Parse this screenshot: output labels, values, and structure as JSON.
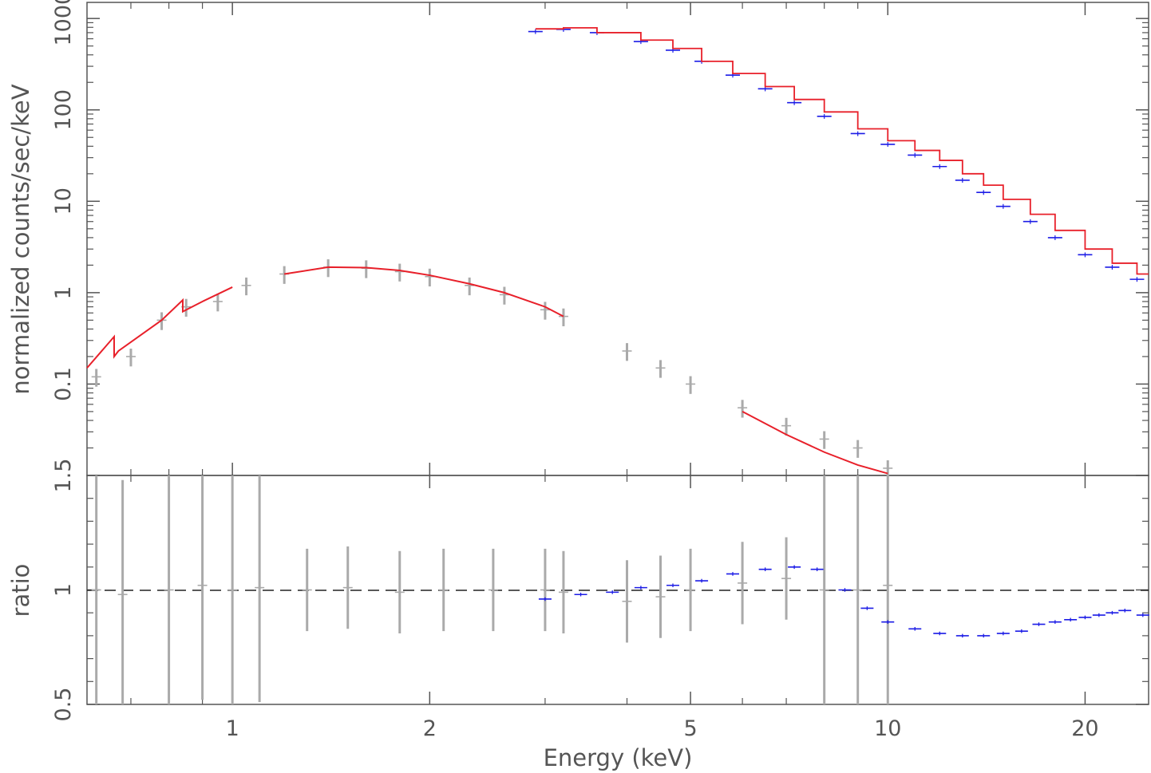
{
  "chart_data": [
    {
      "panel": "spectrum",
      "type": "line",
      "ylabel": "normalized counts/sec/keV",
      "xscale": "log",
      "yscale": "log",
      "xlim": [
        0.6,
        25
      ],
      "ylim": [
        0.01,
        1500
      ],
      "x_ticks": [
        "1",
        "2",
        "5",
        "10",
        "20"
      ],
      "y_ticks": [
        "0.1",
        "1",
        "10",
        "100",
        "1000"
      ],
      "series": [
        {
          "color": "#aaaaaa",
          "style": "data with error bars",
          "x": [
            0.62,
            0.7,
            0.78,
            0.85,
            0.95,
            1.05,
            1.2,
            1.4,
            1.6,
            1.8,
            2.0,
            2.3,
            2.6,
            3.0,
            3.2,
            4.0,
            4.5,
            5.0,
            6.0,
            7.0,
            8.0,
            9.0,
            10.0
          ],
          "y": [
            0.12,
            0.2,
            0.5,
            0.7,
            0.8,
            1.2,
            1.6,
            1.9,
            1.85,
            1.7,
            1.5,
            1.2,
            0.95,
            0.65,
            0.55,
            0.23,
            0.15,
            0.1,
            0.055,
            0.035,
            0.025,
            0.02,
            0.012
          ]
        },
        {
          "color": "#e8202a",
          "style": "model",
          "x": [
            0.6,
            0.66,
            0.66,
            0.67,
            0.78,
            0.84,
            0.84,
            0.9,
            1.0,
            1.2,
            1.4,
            1.6,
            1.8,
            2.0,
            2.3,
            2.6,
            3.0,
            3.2,
            4.0,
            5.0,
            6.0,
            7.0,
            8.0,
            9.0,
            10.0
          ],
          "y": [
            0.15,
            0.33,
            0.2,
            0.23,
            0.5,
            0.83,
            0.62,
            0.8,
            1.15,
            1.6,
            1.9,
            1.88,
            1.75,
            1.55,
            1.25,
            1.0,
            0.7,
            0.55,
            0.25,
            0.11,
            0.05,
            0.028,
            0.018,
            0.013,
            0.0105
          ]
        },
        {
          "color": "#1c1ce6",
          "style": "data with error bars",
          "x": [
            2.9,
            3.2,
            3.6,
            4.2,
            4.7,
            5.2,
            5.8,
            6.5,
            7.2,
            8.0,
            9.0,
            10.0,
            11.0,
            12.0,
            13.0,
            14.0,
            15.0,
            16.5,
            18.0,
            20.0,
            22.0,
            24.0
          ],
          "y": [
            720,
            760,
            700,
            560,
            450,
            340,
            240,
            170,
            120,
            85,
            55,
            42,
            32,
            24,
            17,
            12.5,
            8.8,
            6.0,
            4.0,
            2.6,
            1.9,
            1.4
          ]
        },
        {
          "color": "#e8202a",
          "style": "model step",
          "x": [
            2.9,
            3.2,
            3.6,
            4.2,
            4.7,
            5.2,
            5.8,
            6.5,
            7.2,
            8.0,
            9.0,
            10.0,
            11.0,
            12.0,
            13.0,
            14.0,
            15.0,
            16.5,
            18.0,
            20.0,
            22.0,
            24.0
          ],
          "y": [
            770,
            790,
            700,
            580,
            470,
            340,
            250,
            180,
            130,
            95,
            62,
            46,
            36,
            28,
            20,
            15,
            10.5,
            7.2,
            4.8,
            3.0,
            2.1,
            1.6
          ]
        }
      ]
    },
    {
      "panel": "ratio",
      "type": "scatter",
      "xlabel": "Energy (keV)",
      "ylabel": "ratio",
      "xscale": "log",
      "xlim": [
        0.6,
        25
      ],
      "ylim": [
        0.5,
        1.5
      ],
      "x_ticks": [
        "1",
        "2",
        "5",
        "10",
        "20"
      ],
      "y_ticks": [
        "0.5",
        "1",
        "1.5"
      ],
      "reference_line": 1,
      "series": [
        {
          "color": "#aaaaaa",
          "style": "data with error bars",
          "x": [
            0.62,
            0.68,
            0.8,
            0.9,
            1.0,
            1.1,
            1.3,
            1.5,
            1.8,
            2.1,
            2.5,
            3.0,
            3.2,
            4.0,
            4.5,
            5.0,
            6.0,
            7.0,
            8.0,
            9.0,
            10.0
          ],
          "y": [
            1.0,
            0.98,
            1.0,
            1.02,
            1.0,
            1.01,
            1.0,
            1.01,
            0.99,
            1.0,
            1.0,
            1.0,
            0.99,
            0.95,
            0.97,
            1.0,
            1.03,
            1.05,
            1.0,
            1.0,
            1.02
          ]
        },
        {
          "color": "#1c1ce6",
          "style": "data with error bars",
          "x": [
            3.0,
            3.4,
            3.8,
            4.2,
            4.7,
            5.2,
            5.8,
            6.5,
            7.2,
            7.8,
            8.6,
            9.3,
            10.0,
            11.0,
            12.0,
            13.0,
            14.0,
            15.0,
            16.0,
            17.0,
            18.0,
            19.0,
            20.0,
            21.0,
            22.0,
            23.0,
            24.5
          ],
          "y": [
            0.96,
            0.98,
            0.99,
            1.01,
            1.02,
            1.04,
            1.07,
            1.09,
            1.1,
            1.09,
            1.0,
            0.92,
            0.86,
            0.83,
            0.81,
            0.8,
            0.8,
            0.81,
            0.82,
            0.85,
            0.86,
            0.87,
            0.88,
            0.89,
            0.9,
            0.91,
            0.89
          ]
        }
      ]
    }
  ]
}
